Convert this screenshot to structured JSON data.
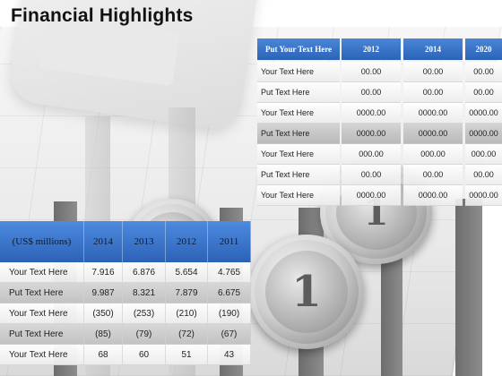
{
  "title": "Financial  Highlights",
  "top_table": {
    "header": [
      "Put Your Text Here",
      "2012",
      "2014",
      "2020"
    ],
    "rows": [
      [
        "Your Text Here",
        "00.00",
        "00.00",
        "00.00"
      ],
      [
        "Put Text Here",
        "00.00",
        "00.00",
        "00.00"
      ],
      [
        "Your Text Here",
        "0000.00",
        "0000.00",
        "0000.00"
      ],
      [
        "Put Text Here",
        "0000.00",
        "0000.00",
        "0000.00"
      ],
      [
        "Your Text Here",
        "000.00",
        "000.00",
        "000.00"
      ],
      [
        "Put Text Here",
        "00.00",
        "00.00",
        "00.00"
      ],
      [
        "Your Text Here",
        "0000.00",
        "0000.00",
        "0000.00"
      ]
    ]
  },
  "bottom_table": {
    "header": [
      "(US$ millions)",
      "2014",
      "2013",
      "2012",
      "2011"
    ],
    "rows": [
      [
        "Your Text Here",
        "7.916",
        "6.876",
        "5.654",
        "4.765"
      ],
      [
        "Put Text Here",
        "9.987",
        "8.321",
        "7.879",
        "6.675"
      ],
      [
        "Your Text Here",
        "(350)",
        "(253)",
        "(210)",
        "(190)"
      ],
      [
        "Put Text Here",
        "(85)",
        "(79)",
        "(72)",
        "(67)"
      ],
      [
        "Your Text Here",
        "68",
        "60",
        "51",
        "43"
      ]
    ]
  },
  "coins": [
    "1",
    "1"
  ],
  "colors": {
    "header_blue": "#2b63b8",
    "header_blue_light": "#4a86d6",
    "highlight_row": "#c3c3c3"
  }
}
